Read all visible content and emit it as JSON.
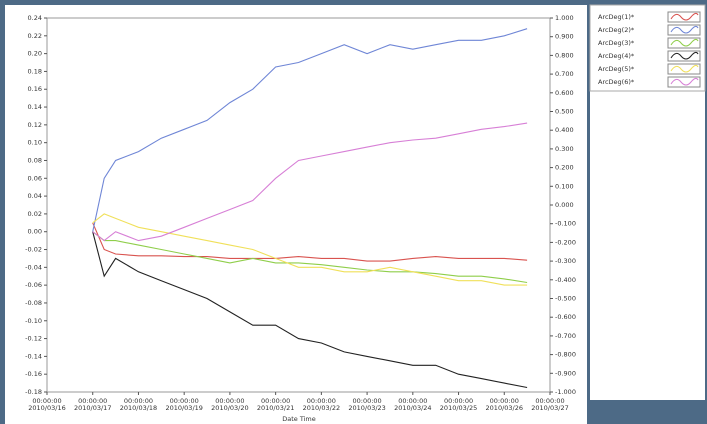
{
  "chart_data": {
    "type": "line",
    "x_label": "Date Time",
    "x": [
      "2010-03-17T00:00:00",
      "2010-03-17T06:00:00",
      "2010-03-17T12:00:00",
      "2010-03-18T00:00:00",
      "2010-03-18T12:00:00",
      "2010-03-19T00:00:00",
      "2010-03-19T12:00:00",
      "2010-03-20T00:00:00",
      "2010-03-20T12:00:00",
      "2010-03-21T00:00:00",
      "2010-03-21T12:00:00",
      "2010-03-22T00:00:00",
      "2010-03-22T12:00:00",
      "2010-03-23T00:00:00",
      "2010-03-23T12:00:00",
      "2010-03-24T00:00:00",
      "2010-03-24T12:00:00",
      "2010-03-25T00:00:00",
      "2010-03-25T12:00:00",
      "2010-03-26T00:00:00",
      "2010-03-26T12:00:00"
    ],
    "series": [
      {
        "name": "ArcDeg(1)*",
        "color": "#d9534f",
        "values": [
          0.01,
          -0.02,
          -0.025,
          -0.027,
          -0.027,
          -0.028,
          -0.028,
          -0.03,
          -0.03,
          -0.03,
          -0.028,
          -0.03,
          -0.03,
          -0.033,
          -0.033,
          -0.03,
          -0.028,
          -0.03,
          -0.03,
          -0.03,
          -0.032
        ]
      },
      {
        "name": "ArcDeg(2)*",
        "color": "#6f86d6",
        "values": [
          0.0,
          0.06,
          0.08,
          0.09,
          0.105,
          0.115,
          0.125,
          0.145,
          0.16,
          0.185,
          0.19,
          0.2,
          0.21,
          0.2,
          0.21,
          0.205,
          0.21,
          0.215,
          0.215,
          0.22,
          0.228
        ]
      },
      {
        "name": "ArcDeg(3)*",
        "color": "#8fce4a",
        "values": [
          0.0,
          -0.01,
          -0.01,
          -0.015,
          -0.02,
          -0.025,
          -0.03,
          -0.035,
          -0.03,
          -0.035,
          -0.035,
          -0.037,
          -0.04,
          -0.043,
          -0.045,
          -0.045,
          -0.047,
          -0.05,
          -0.05,
          -0.053,
          -0.057
        ]
      },
      {
        "name": "ArcDeg(4)*",
        "color": "#222222",
        "values": [
          0.0,
          -0.05,
          -0.03,
          -0.045,
          -0.055,
          -0.065,
          -0.075,
          -0.09,
          -0.105,
          -0.105,
          -0.12,
          -0.125,
          -0.135,
          -0.14,
          -0.145,
          -0.15,
          -0.15,
          -0.16,
          -0.165,
          -0.17,
          -0.175
        ]
      },
      {
        "name": "ArcDeg(5)*",
        "color": "#f0e05a",
        "values": [
          0.01,
          0.02,
          0.015,
          0.005,
          0.0,
          -0.005,
          -0.01,
          -0.015,
          -0.02,
          -0.03,
          -0.04,
          -0.04,
          -0.045,
          -0.045,
          -0.04,
          -0.045,
          -0.05,
          -0.055,
          -0.055,
          -0.06,
          -0.06
        ]
      },
      {
        "name": "ArcDeg(6)*",
        "color": "#d77fd6",
        "values": [
          0.0,
          -0.01,
          0.0,
          -0.01,
          -0.005,
          0.005,
          0.015,
          0.025,
          0.035,
          0.06,
          0.08,
          0.085,
          0.09,
          0.095,
          0.1,
          0.103,
          0.105,
          0.11,
          0.115,
          0.118,
          0.122
        ]
      }
    ],
    "xlim": [
      "2010-03-16T00:00:00",
      "2010-03-27T00:00:00"
    ],
    "xticks": [
      {
        "value": "2010-03-16T00:00:00",
        "label": [
          "00:00:00",
          "2010/03/16"
        ]
      },
      {
        "value": "2010-03-17T00:00:00",
        "label": [
          "00:00:00",
          "2010/03/17"
        ]
      },
      {
        "value": "2010-03-18T00:00:00",
        "label": [
          "00:00:00",
          "2010/03/18"
        ]
      },
      {
        "value": "2010-03-19T00:00:00",
        "label": [
          "00:00:00",
          "2010/03/19"
        ]
      },
      {
        "value": "2010-03-20T00:00:00",
        "label": [
          "00:00:00",
          "2010/03/20"
        ]
      },
      {
        "value": "2010-03-21T00:00:00",
        "label": [
          "00:00:00",
          "2010/03/21"
        ]
      },
      {
        "value": "2010-03-22T00:00:00",
        "label": [
          "00:00:00",
          "2010/03/22"
        ]
      },
      {
        "value": "2010-03-23T00:00:00",
        "label": [
          "00:00:00",
          "2010/03/23"
        ]
      },
      {
        "value": "2010-03-24T00:00:00",
        "label": [
          "00:00:00",
          "2010/03/24"
        ]
      },
      {
        "value": "2010-03-25T00:00:00",
        "label": [
          "00:00:00",
          "2010/03/25"
        ]
      },
      {
        "value": "2010-03-26T00:00:00",
        "label": [
          "00:00:00",
          "2010/03/26"
        ]
      },
      {
        "value": "2010-03-27T00:00:00",
        "label": [
          "00:00:00",
          "2010/03/27"
        ]
      }
    ],
    "ylim": [
      -0.18,
      0.24
    ],
    "yticks": [
      0.24,
      0.22,
      {
        "value": 0.2,
        "label": "0.20"
      },
      0.18,
      0.16,
      0.14,
      0.12,
      {
        "value": 0.1,
        "label": "0.10"
      },
      0.08,
      0.06,
      0.04,
      0.02,
      {
        "value": 0,
        "label": "0.00"
      },
      -0.02,
      -0.04,
      -0.06,
      -0.08,
      {
        "value": -0.1,
        "label": "-0.10"
      },
      -0.12,
      -0.14,
      -0.16,
      -0.18
    ],
    "y2lim": [
      -1,
      1
    ],
    "y2ticks": [
      {
        "value": 1,
        "label": "1.000"
      },
      {
        "value": 0.9,
        "label": "0.900"
      },
      {
        "value": 0.8,
        "label": "0.800"
      },
      {
        "value": 0.7,
        "label": "0.700"
      },
      {
        "value": 0.6,
        "label": "0.600"
      },
      {
        "value": 0.5,
        "label": "0.500"
      },
      {
        "value": 0.4,
        "label": "0.400"
      },
      {
        "value": 0.3,
        "label": "0.300"
      },
      {
        "value": 0.2,
        "label": "0.200"
      },
      {
        "value": 0.1,
        "label": "0.100"
      },
      {
        "value": 0,
        "label": "0.000"
      },
      {
        "value": -0.1,
        "label": "-0.100"
      },
      {
        "value": -0.2,
        "label": "-0.200"
      },
      {
        "value": -0.3,
        "label": "-0.300"
      },
      {
        "value": -0.4,
        "label": "-0.400"
      },
      {
        "value": -0.5,
        "label": "-0.500"
      },
      {
        "value": -0.6,
        "label": "-0.600"
      },
      {
        "value": -0.7,
        "label": "-0.700"
      },
      {
        "value": -0.8,
        "label": "-0.800"
      },
      {
        "value": -0.9,
        "label": "-0.900"
      },
      {
        "value": -1,
        "label": "-1.000"
      }
    ],
    "grid": false
  }
}
